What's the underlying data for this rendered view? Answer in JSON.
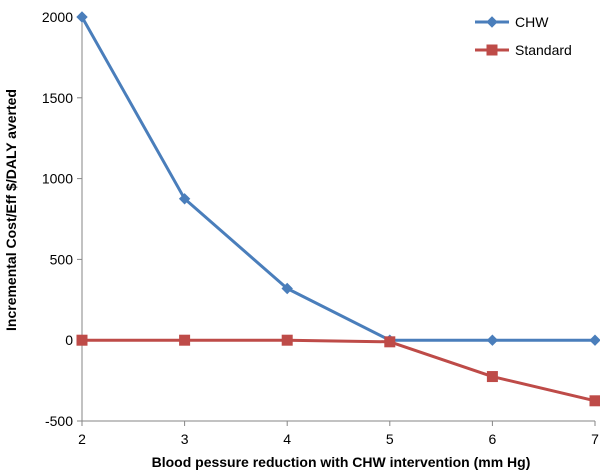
{
  "chart_data": {
    "type": "line",
    "x": [
      2,
      3,
      4,
      5,
      6,
      7
    ],
    "series": [
      {
        "name": "CHW",
        "values": [
          2000,
          875,
          320,
          0,
          0,
          0
        ],
        "color": "#4a7ebb",
        "marker": "diamond"
      },
      {
        "name": "Standard",
        "values": [
          0,
          0,
          0,
          -10,
          -225,
          -375
        ],
        "color": "#be4b48",
        "marker": "square"
      }
    ],
    "xlabel": "Blood pessure reduction with CHW intervention (mm Hg)",
    "ylabel": "Incremental Cost/Eff $/DALY averted",
    "xlim": [
      2,
      7
    ],
    "ylim": [
      -500,
      2000
    ],
    "x_ticks": [
      "2",
      "3",
      "4",
      "5",
      "6",
      "7"
    ],
    "y_ticks": [
      "-500",
      "0",
      "500",
      "1000",
      "1500",
      "2000"
    ],
    "grid": false,
    "legend_position": "top-right"
  }
}
